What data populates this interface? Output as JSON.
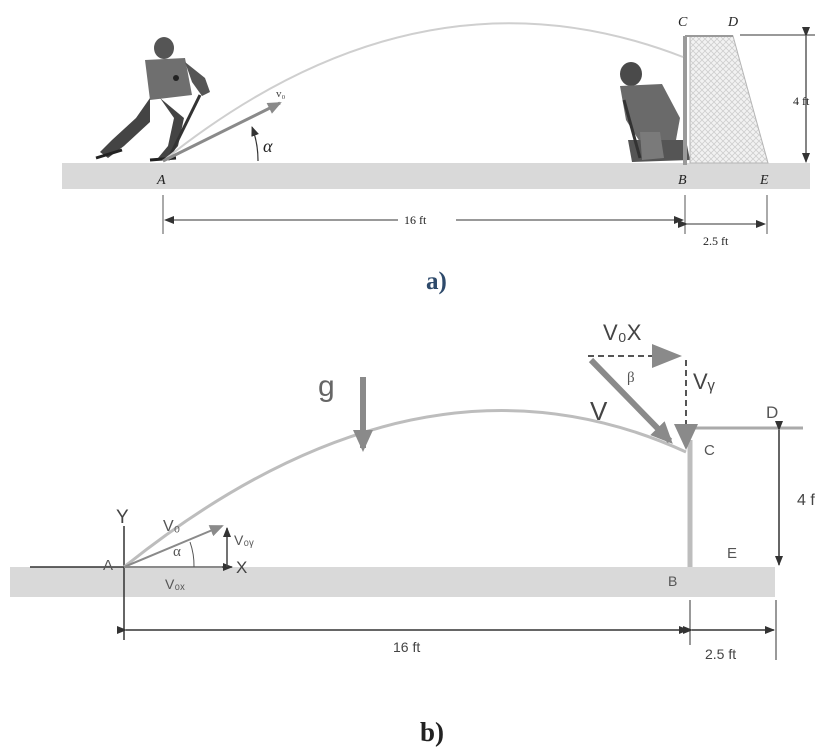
{
  "figure_a": {
    "caption": "a)",
    "labels": {
      "point_a": "A",
      "point_b": "B",
      "point_c": "C",
      "point_d": "D",
      "point_e": "E",
      "v0": "v₀",
      "alpha": "α",
      "dist_16": "16 ft",
      "dist_25": "2.5 ft",
      "height_4": "4 ft"
    }
  },
  "figure_b": {
    "caption": "b)",
    "labels": {
      "g": "g",
      "y_axis": "Y",
      "x_axis": "X",
      "point_a": "A",
      "point_b": "B",
      "point_c": "C",
      "point_d": "D",
      "point_e": "E",
      "v0": "V₀",
      "v0y": "V₀ᵧ",
      "v0x": "V₀ₓ",
      "alpha": "α",
      "v_top": "V₀X",
      "beta": "β",
      "vy": "Vᵧ",
      "v": "V",
      "dist_16": "16 ft",
      "dist_25": "2.5 ft",
      "height_4": "4 f"
    }
  },
  "colors": {
    "ground": "#d9d9d9",
    "trajectory": "#bdbdbd",
    "vector": "#8a8a8a",
    "line": "#333333",
    "caption": "#2e4a6b"
  }
}
